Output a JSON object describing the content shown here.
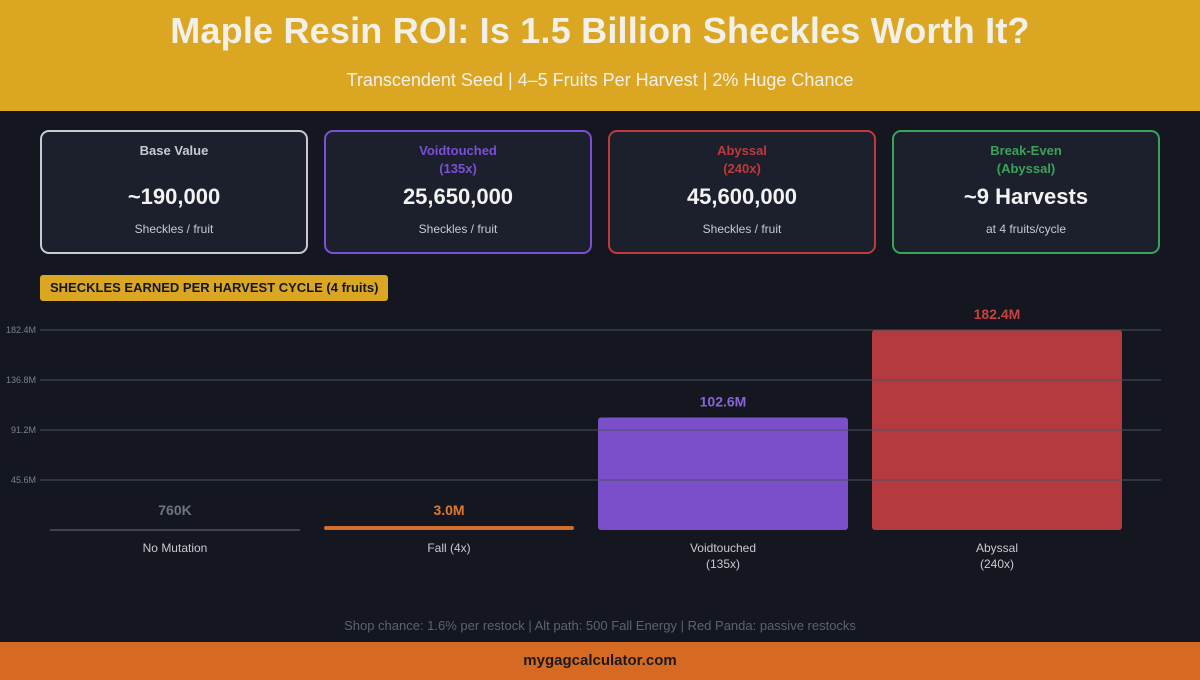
{
  "header": {
    "title": "Maple Resin ROI: Is 1.5 Billion Sheckles Worth It?",
    "subtitle": "Transcendent Seed  |  4–5 Fruits Per Harvest  |  2% Huge Chance"
  },
  "cards": [
    {
      "label_line1": "Base Value",
      "label_line2": "",
      "value": "~190,000",
      "unit": "Sheckles / fruit",
      "color": "#c8cad0"
    },
    {
      "label_line1": "Voidtouched",
      "label_line2": "(135x)",
      "value": "25,650,000",
      "unit": "Sheckles / fruit",
      "color": "#7b4fd6"
    },
    {
      "label_line1": "Abyssal",
      "label_line2": "(240x)",
      "value": "45,600,000",
      "unit": "Sheckles / fruit",
      "color": "#c0393b"
    },
    {
      "label_line1": "Break-Even",
      "label_line2": "(Abyssal)",
      "value": "~9 Harvests",
      "unit": "at 4 fruits/cycle",
      "color": "#3aa35a"
    }
  ],
  "section_label": "SHECKLES EARNED PER HARVEST CYCLE (4 fruits)",
  "chart_data": {
    "type": "bar",
    "title": "SHECKLES EARNED PER HARVEST CYCLE (4 fruits)",
    "categories": [
      [
        "No Mutation"
      ],
      [
        "Fall (4x)"
      ],
      [
        "Voidtouched",
        "(135x)"
      ],
      [
        "Abyssal",
        "(240x)"
      ]
    ],
    "values": [
      0.76,
      3.04,
      102.6,
      182.4
    ],
    "value_labels": [
      "760K",
      "3.0M",
      "102.6M",
      "182.4M"
    ],
    "colors": [
      "#6b6f7a",
      "#d46e2c",
      "#7b4fc9",
      "#b53a40"
    ],
    "value_label_colors": [
      "#70747f",
      "#e0782e",
      "#8a63d8",
      "#c6423f"
    ],
    "yticks": [
      45.6,
      91.2,
      136.8,
      182.4
    ],
    "ytick_labels": [
      "45.6M",
      "91.2M",
      "136.8M",
      "182.4M"
    ],
    "ylim": [
      0,
      182.4
    ],
    "grid": true
  },
  "footnote": "Shop chance: 1.6% per restock  |  Alt path: 500 Fall Energy  |  Red Panda: passive restocks",
  "footer": {
    "site": "mygagcalculator.com"
  }
}
